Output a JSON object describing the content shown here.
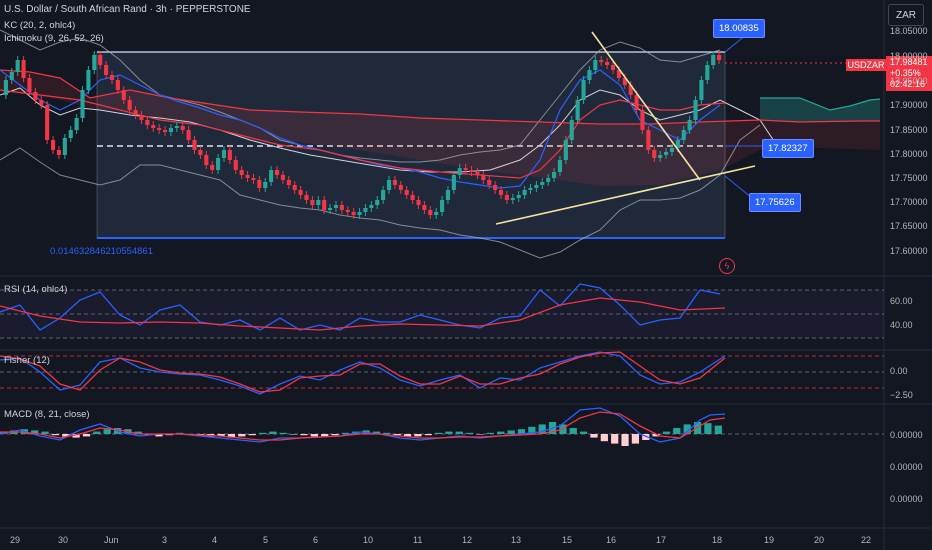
{
  "header": {
    "title": "U.S. Dollar / South African Rand · 3h · PEPPERSTONE",
    "kc_label": "KC (20, 2, ohlc4)",
    "ichimoku_label": "Ichimoku (9, 26, 52, 26)",
    "currency": "ZAR"
  },
  "price_axis": {
    "labels": [
      "18.05000",
      "18.00000",
      "17.95000",
      "17.90000",
      "17.85000",
      "17.80000",
      "17.75000",
      "17.70000",
      "17.65000",
      "17.60000"
    ]
  },
  "current_price": {
    "symbol": "USDZAR",
    "price": "17.98481",
    "change": "+0.35%",
    "countdown": "02:42:16"
  },
  "callouts": {
    "high": "18.00835",
    "mid": "17.82327",
    "low": "17.75626"
  },
  "range_value": "0.014632846210554861",
  "rsi": {
    "label": "RSI (14, ohlc4)",
    "levels": [
      "60.00",
      "40.00"
    ]
  },
  "fisher": {
    "label": "Fisher (12)",
    "levels": [
      "0.00",
      "−2.50"
    ]
  },
  "macd": {
    "label": "MACD (8, 21, close)",
    "levels": [
      "0.00000",
      "0.00000",
      "0.00000"
    ]
  },
  "time_axis": {
    "labels": [
      "29",
      "30",
      "Jun",
      "3",
      "4",
      "5",
      "6",
      "10",
      "11",
      "12",
      "13",
      "15",
      "16",
      "17",
      "18",
      "19",
      "20",
      "22"
    ]
  },
  "colors": {
    "bull": "#26a69a",
    "bear": "#f23645",
    "accent": "#2962ff",
    "background": "#131722"
  }
}
